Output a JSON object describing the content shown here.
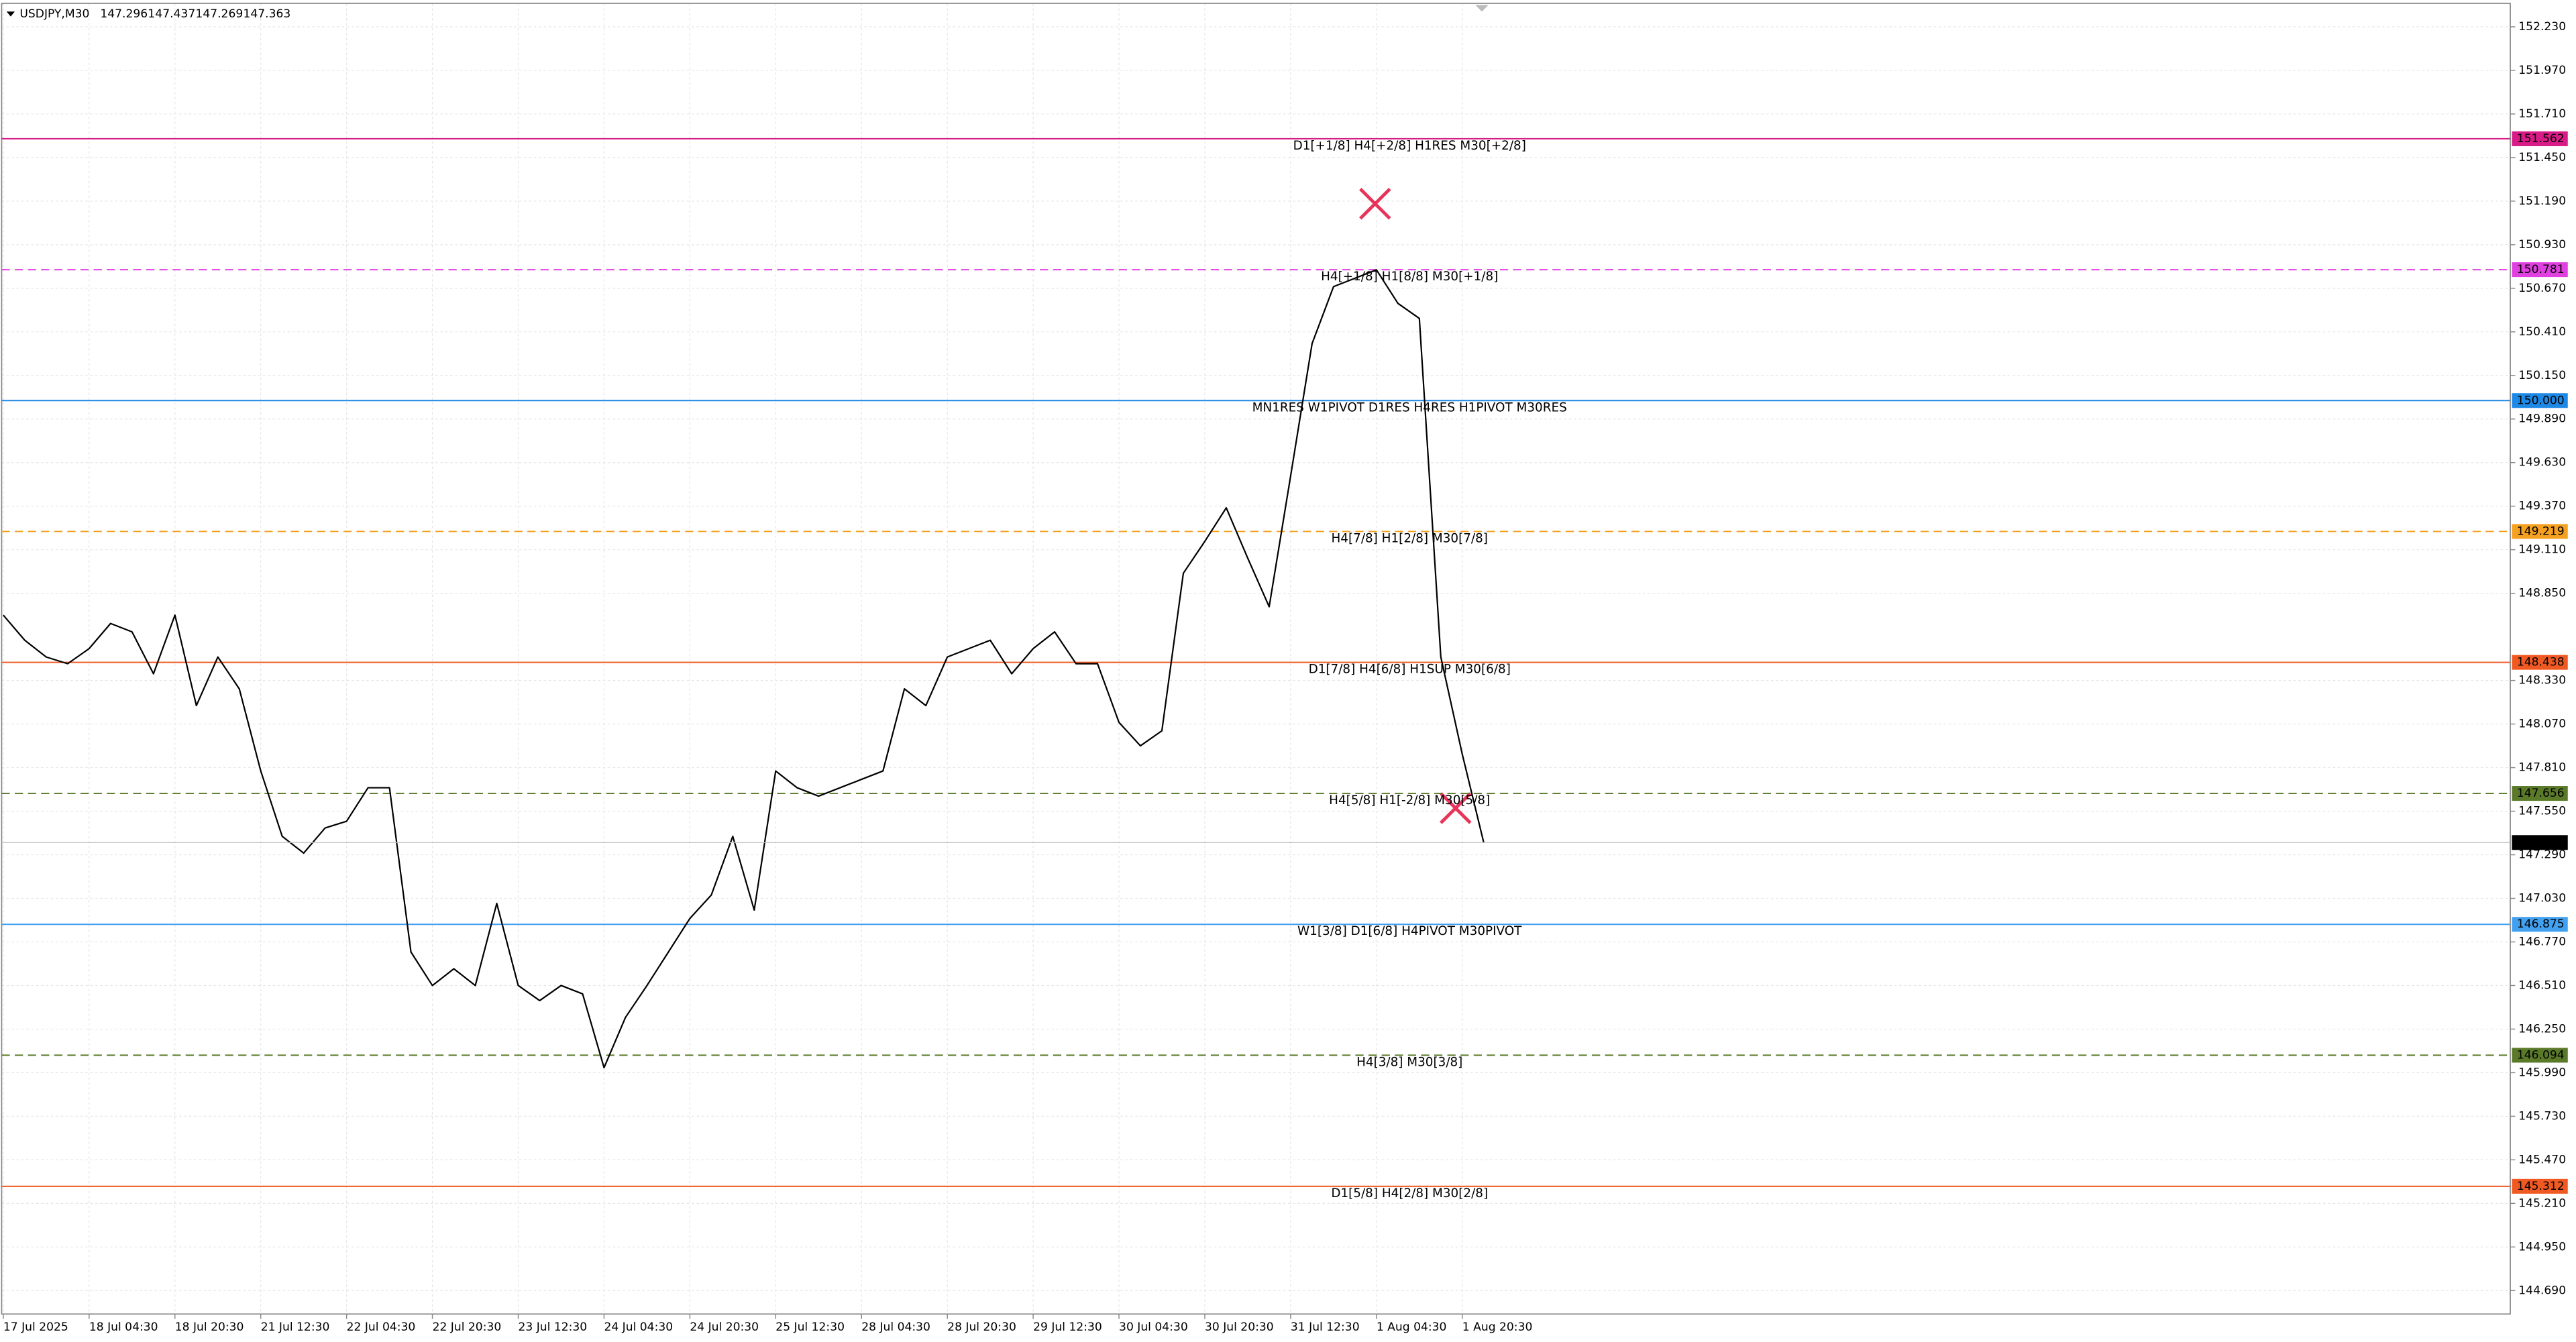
{
  "chart_data": {
    "type": "line",
    "title": "USDJPY,M30",
    "ohlc": [
      147.296,
      147.437,
      147.269,
      147.363
    ],
    "color": "#000000",
    "grid": true,
    "categories": [
      "17 Jul 2025",
      null,
      null,
      null,
      "18 Jul 04:30",
      null,
      null,
      null,
      "18 Jul 20:30",
      null,
      null,
      null,
      "21 Jul 12:30",
      null,
      null,
      null,
      "22 Jul 04:30",
      null,
      null,
      null,
      "22 Jul 20:30",
      null,
      null,
      null,
      "23 Jul 12:30",
      null,
      null,
      null,
      "24 Jul 04:30",
      null,
      null,
      null,
      "24 Jul 20:30",
      null,
      null,
      null,
      "25 Jul 12:30",
      null,
      null,
      null,
      "28 Jul 04:30",
      null,
      null,
      null,
      "28 Jul 20:30",
      null,
      null,
      null,
      "29 Jul 12:30",
      null,
      null,
      null,
      "30 Jul 04:30",
      null,
      null,
      null,
      "30 Jul 20:30",
      null,
      null,
      null,
      "31 Jul 12:30",
      null,
      null,
      null,
      "1 Aug 04:30",
      null,
      null,
      null,
      "1 Aug 20:30",
      null
    ],
    "values": [
      148.72,
      148.57,
      148.47,
      148.43,
      148.52,
      148.67,
      148.62,
      148.37,
      148.72,
      148.18,
      148.47,
      148.28,
      147.79,
      147.4,
      147.3,
      147.45,
      147.49,
      147.69,
      147.69,
      146.71,
      146.51,
      146.61,
      146.51,
      147.0,
      146.51,
      146.42,
      146.51,
      146.46,
      146.02,
      146.32,
      146.51,
      146.71,
      146.91,
      147.05,
      147.4,
      146.96,
      147.79,
      147.69,
      147.64,
      147.69,
      147.74,
      147.79,
      148.28,
      148.18,
      148.47,
      148.52,
      148.57,
      148.37,
      148.52,
      148.62,
      148.43,
      148.43,
      148.08,
      147.94,
      148.03,
      148.97,
      149.16,
      149.36,
      149.06,
      148.77,
      149.55,
      150.34,
      150.68,
      150.73,
      150.78,
      150.58,
      150.49,
      148.47,
      147.89,
      147.363
    ],
    "ylim": [
      144.55,
      152.37
    ],
    "yticks": [
      {
        "value": 152.23,
        "label": "152.230"
      },
      {
        "value": 151.97,
        "label": "151.970"
      },
      {
        "value": 151.71,
        "label": "151.710"
      },
      {
        "value": 151.45,
        "label": "151.450"
      },
      {
        "value": 151.19,
        "label": "151.190"
      },
      {
        "value": 150.93,
        "label": "150.930"
      },
      {
        "value": 150.67,
        "label": "150.670"
      },
      {
        "value": 150.41,
        "label": "150.410"
      },
      {
        "value": 150.15,
        "label": "150.150"
      },
      {
        "value": 149.89,
        "label": "149.890"
      },
      {
        "value": 149.63,
        "label": "149.630"
      },
      {
        "value": 149.37,
        "label": "149.370"
      },
      {
        "value": 149.11,
        "label": "149.110"
      },
      {
        "value": 148.85,
        "label": "148.850"
      },
      {
        "value": 148.33,
        "label": "148.330"
      },
      {
        "value": 148.07,
        "label": "148.070"
      },
      {
        "value": 147.81,
        "label": "147.810"
      },
      {
        "value": 147.55,
        "label": "147.550"
      },
      {
        "value": 147.29,
        "label": "147.290"
      },
      {
        "value": 147.03,
        "label": "147.030"
      },
      {
        "value": 146.77,
        "label": "146.770"
      },
      {
        "value": 146.51,
        "label": "146.510"
      },
      {
        "value": 146.25,
        "label": "146.250"
      },
      {
        "value": 145.99,
        "label": "145.990"
      },
      {
        "value": 145.73,
        "label": "145.730"
      },
      {
        "value": 145.47,
        "label": "145.470"
      },
      {
        "value": 145.21,
        "label": "145.210"
      },
      {
        "value": 144.95,
        "label": "144.950"
      },
      {
        "value": 144.69,
        "label": "144.690"
      }
    ],
    "levels": [
      {
        "price": 151.562,
        "label": "D1[+1/8] H4[+2/8] H1RES M30[+2/8]",
        "color": "#d81b86",
        "dashed": false
      },
      {
        "price": 150.781,
        "label": "H4[+1/8] H1[8/8] M30[+1/8]",
        "color": "#e040e0",
        "dashed": true
      },
      {
        "price": {
          "value": 150,
          "label": "150.000"
        },
        "label": "MN1RES W1PIVOT D1RES H4RES H1PIVOT M30RES",
        "color": "#1e88e5",
        "dashed": false
      },
      {
        "price": 149.219,
        "label": "H4[7/8] H1[2/8] M30[7/8]",
        "color": "#f5a020",
        "dashed": true
      },
      {
        "price": 148.438,
        "label": "D1[7/8] H4[6/8] H1SUP M30[6/8]",
        "color": "#f05a22",
        "dashed": false
      },
      {
        "price": 147.656,
        "label": "H4[5/8] H1[-2/8] M30[5/8]",
        "color": "#5a7a2a",
        "dashed": true
      },
      {
        "price": 146.875,
        "label": "W1[3/8] D1[6/8] H4PIVOT M30PIVOT",
        "color": "#42a0f0",
        "dashed": false
      },
      {
        "price": 146.094,
        "label": "H4[3/8] M30[3/8]",
        "color": "#5a7a2a",
        "dashed": true
      },
      {
        "price": 145.312,
        "label": "D1[5/8] H4[2/8] M30[2/8]",
        "color": "#f05a22",
        "dashed": false
      }
    ],
    "current_price": 147.363
  }
}
